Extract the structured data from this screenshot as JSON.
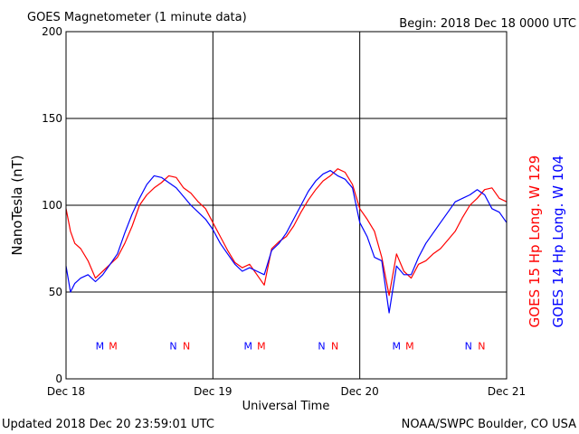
{
  "header": {
    "title": "GOES Magnetometer (1 minute data)",
    "begin_label": "Begin:  2018 Dec 18 0000 UTC"
  },
  "footer": {
    "updated_label": "Updated 2018 Dec 20 23:59:01 UTC",
    "source_label": "NOAA/SWPC Boulder, CO USA"
  },
  "colors": {
    "goes15": "#ff0000",
    "goes14": "#0000ff",
    "axis": "#000000",
    "grid": "#000000",
    "background": "#ffffff"
  },
  "chart_data": {
    "type": "line",
    "ylabel": "NanoTesla (nT)",
    "xlabel": "Universal Time",
    "x_unit": "days since Dec 18 0000 UTC",
    "xlim": [
      0,
      3
    ],
    "ylim": [
      0,
      200
    ],
    "yticks": [
      0,
      50,
      100,
      150,
      200
    ],
    "x_tick_labels": [
      "Dec 18",
      "Dec 19",
      "Dec 20",
      "Dec 21"
    ],
    "x_tick_positions": [
      0,
      1,
      2,
      3
    ],
    "grid": true,
    "legend_placement": "right, vertical",
    "series": [
      {
        "name": "GOES 15 Hp  Long. W 129",
        "color": "#ff0000",
        "x": [
          0,
          0.03,
          0.06,
          0.1,
          0.15,
          0.2,
          0.25,
          0.3,
          0.35,
          0.4,
          0.45,
          0.5,
          0.55,
          0.6,
          0.65,
          0.7,
          0.75,
          0.8,
          0.85,
          0.9,
          0.95,
          1.0,
          1.05,
          1.1,
          1.15,
          1.2,
          1.25,
          1.3,
          1.35,
          1.4,
          1.45,
          1.5,
          1.55,
          1.6,
          1.65,
          1.7,
          1.75,
          1.8,
          1.85,
          1.9,
          1.95,
          2.0,
          2.05,
          2.1,
          2.15,
          2.2,
          2.25,
          2.3,
          2.35,
          2.4,
          2.45,
          2.5,
          2.55,
          2.6,
          2.65,
          2.7,
          2.75,
          2.8,
          2.85,
          2.9,
          2.95,
          3.0
        ],
        "y": [
          98,
          85,
          78,
          75,
          68,
          58,
          62,
          66,
          70,
          78,
          88,
          100,
          106,
          110,
          113,
          117,
          116,
          110,
          107,
          102,
          98,
          90,
          82,
          74,
          67,
          64,
          66,
          60,
          54,
          75,
          79,
          82,
          88,
          96,
          103,
          109,
          114,
          117,
          121,
          119,
          112,
          98,
          92,
          85,
          70,
          48,
          72,
          62,
          58,
          66,
          68,
          72,
          75,
          80,
          85,
          93,
          100,
          104,
          109,
          110,
          104,
          102
        ]
      },
      {
        "name": "GOES 14 Hp  Long. W 104",
        "color": "#0000ff",
        "x": [
          0,
          0.03,
          0.06,
          0.1,
          0.15,
          0.2,
          0.25,
          0.3,
          0.35,
          0.4,
          0.45,
          0.5,
          0.55,
          0.6,
          0.65,
          0.7,
          0.75,
          0.8,
          0.85,
          0.9,
          0.95,
          1.0,
          1.05,
          1.1,
          1.15,
          1.2,
          1.25,
          1.3,
          1.35,
          1.4,
          1.45,
          1.5,
          1.55,
          1.6,
          1.65,
          1.7,
          1.75,
          1.8,
          1.85,
          1.9,
          1.95,
          2.0,
          2.05,
          2.1,
          2.15,
          2.2,
          2.25,
          2.3,
          2.35,
          2.4,
          2.45,
          2.5,
          2.55,
          2.6,
          2.65,
          2.7,
          2.75,
          2.8,
          2.85,
          2.9,
          2.95,
          3.0
        ],
        "y": [
          65,
          50,
          55,
          58,
          60,
          56,
          60,
          66,
          72,
          84,
          95,
          104,
          112,
          117,
          116,
          113,
          110,
          105,
          100,
          96,
          92,
          86,
          78,
          72,
          66,
          62,
          64,
          62,
          60,
          74,
          78,
          84,
          92,
          100,
          108,
          114,
          118,
          120,
          117,
          115,
          110,
          90,
          82,
          70,
          68,
          38,
          65,
          60,
          60,
          70,
          78,
          84,
          90,
          96,
          102,
          104,
          106,
          109,
          106,
          98,
          96,
          90
        ]
      }
    ],
    "markers": [
      {
        "label": "M",
        "series": 1,
        "x": 0.23
      },
      {
        "label": "M",
        "series": 0,
        "x": 0.32
      },
      {
        "label": "N",
        "series": 1,
        "x": 0.73
      },
      {
        "label": "N",
        "series": 0,
        "x": 0.82
      },
      {
        "label": "M",
        "series": 1,
        "x": 1.24
      },
      {
        "label": "M",
        "series": 0,
        "x": 1.33
      },
      {
        "label": "N",
        "series": 1,
        "x": 1.74
      },
      {
        "label": "N",
        "series": 0,
        "x": 1.83
      },
      {
        "label": "M",
        "series": 1,
        "x": 2.25
      },
      {
        "label": "M",
        "series": 0,
        "x": 2.34
      },
      {
        "label": "N",
        "series": 1,
        "x": 2.74
      },
      {
        "label": "N",
        "series": 0,
        "x": 2.83
      }
    ],
    "marker_y": 17
  }
}
